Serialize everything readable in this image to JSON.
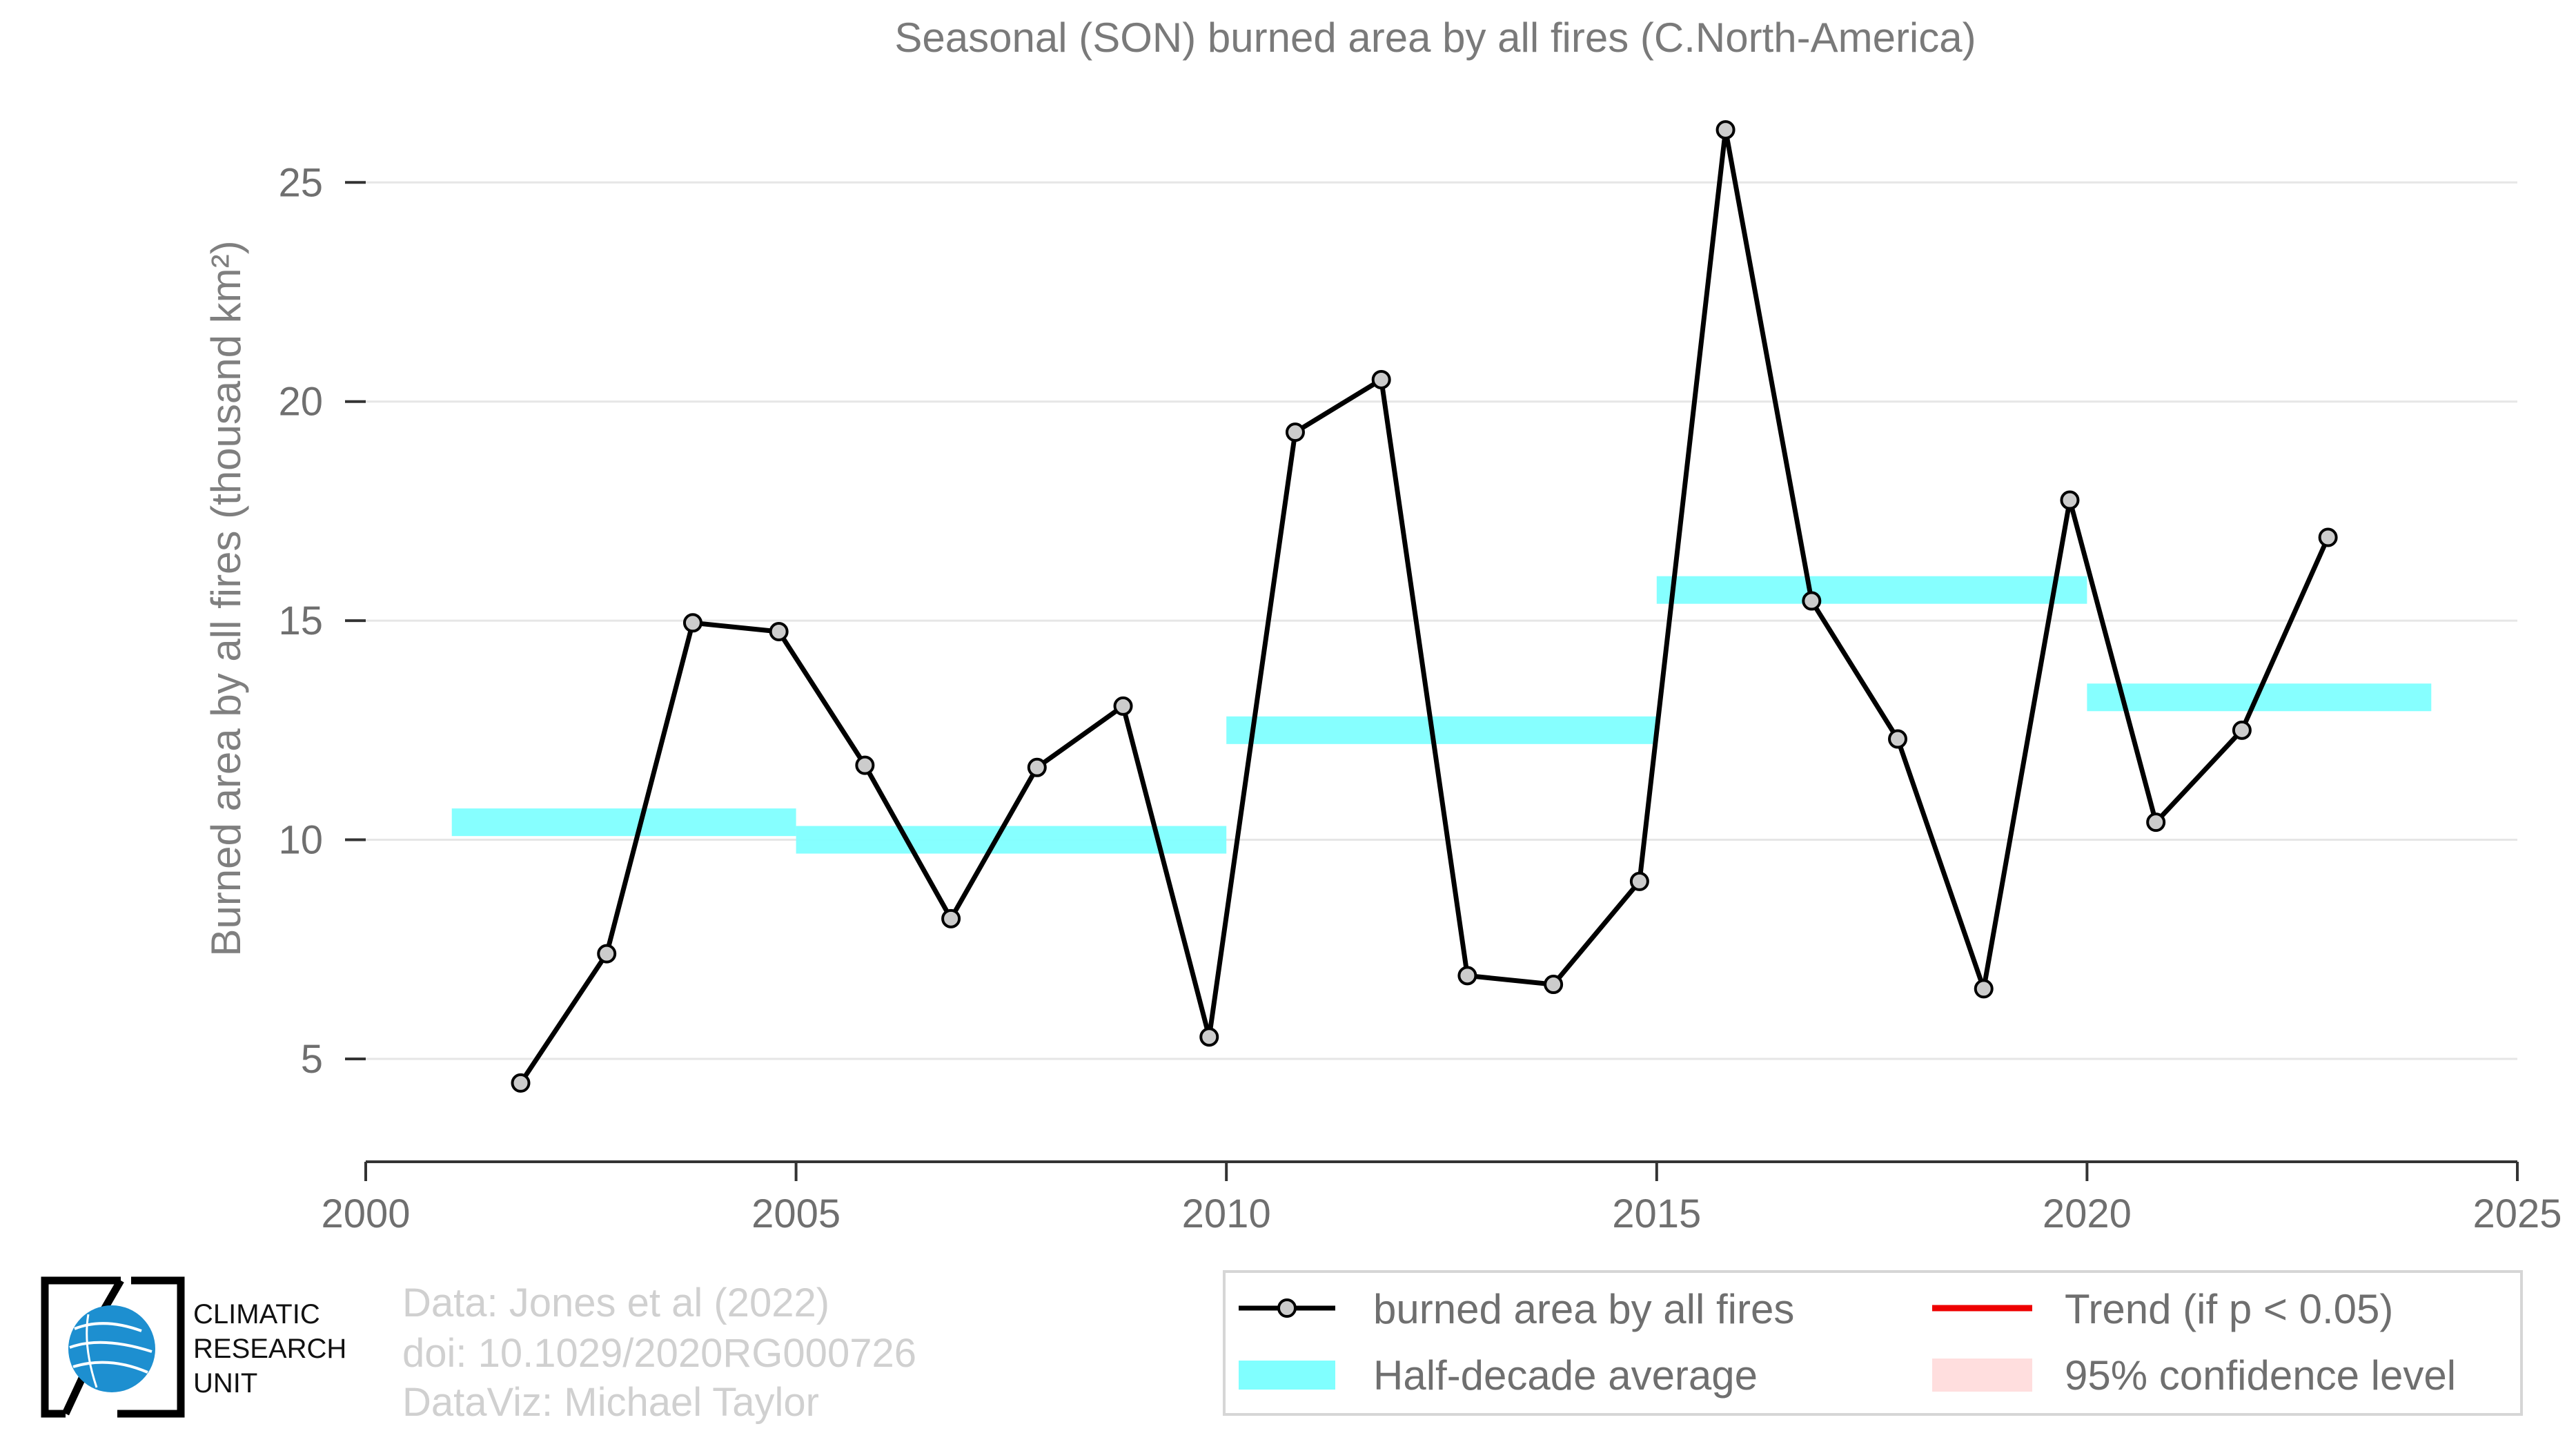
{
  "chart_data": {
    "type": "line",
    "title": "Seasonal (SON) burned area by all fires (C.North-America)",
    "ylabel": "Burned area by all fires (thousand km²)",
    "xlabel": "",
    "xlim": [
      2000,
      2025
    ],
    "ylim": [
      2.7,
      26.8
    ],
    "xticks": [
      2000,
      2005,
      2010,
      2015,
      2020,
      2025
    ],
    "yticks": [
      5,
      10,
      15,
      20,
      25
    ],
    "grid": "horizontal",
    "series": [
      {
        "name": "burned area by all fires",
        "color": "#000000",
        "marker_fill": "#cccccc",
        "x": [
          2001.8,
          2002.8,
          2003.8,
          2004.8,
          2005.8,
          2006.8,
          2007.8,
          2008.8,
          2009.8,
          2010.8,
          2011.8,
          2012.8,
          2013.8,
          2014.8,
          2015.8,
          2016.8,
          2017.8,
          2018.8,
          2019.8,
          2020.8,
          2021.8,
          2022.8
        ],
        "values": [
          4.45,
          7.4,
          14.95,
          14.75,
          11.7,
          8.2,
          11.65,
          13.05,
          5.5,
          19.3,
          20.5,
          6.9,
          6.7,
          9.05,
          26.2,
          15.45,
          12.3,
          6.6,
          17.75,
          10.4,
          12.5,
          16.9
        ]
      }
    ],
    "half_decade_average": {
      "name": "Half-decade average",
      "color": "#80ffff",
      "segments": [
        {
          "x_start": 2001,
          "x_end": 2005,
          "value": 10.4
        },
        {
          "x_start": 2005,
          "x_end": 2010,
          "value": 10.0
        },
        {
          "x_start": 2010,
          "x_end": 2015,
          "value": 12.5
        },
        {
          "x_start": 2015,
          "x_end": 2020,
          "value": 15.7
        },
        {
          "x_start": 2020,
          "x_end": 2024,
          "value": 13.25
        }
      ]
    },
    "legend": {
      "placement": "bottom-right",
      "entries": [
        {
          "label": "burned area by all fires",
          "color": "#000000"
        },
        {
          "label": "Trend (if p < 0.05)",
          "color": "#ee0000"
        },
        {
          "label": "Half-decade average",
          "color": "#80ffff"
        },
        {
          "label": "95% confidence level",
          "color": "#ffdede"
        }
      ]
    }
  },
  "logo": {
    "text_lines": [
      "CLIMATIC",
      "RESEARCH",
      "UNIT"
    ]
  },
  "credits": {
    "lines": [
      "Data: Jones et al (2022)",
      "doi: 10.1029/2020RG000726",
      "DataViz: Michael Taylor"
    ]
  }
}
